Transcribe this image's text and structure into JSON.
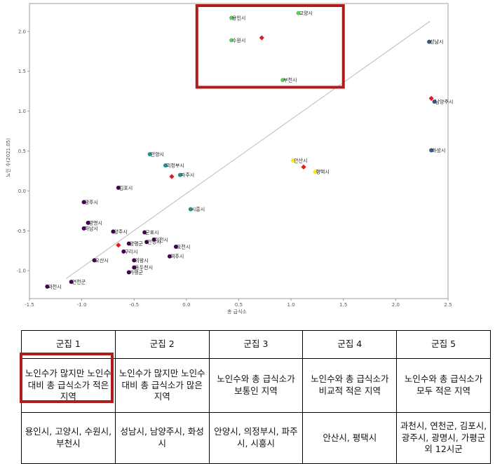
{
  "colors": {
    "cluster1": "#5ec962",
    "cluster2": "#3b528b",
    "cluster3": "#21918c",
    "cluster4": "#fde725",
    "cluster5": "#440154",
    "centroid": "#e31a1c",
    "highlight": "#b01c1c",
    "trendline": "#bbbbbb"
  },
  "chart_data": {
    "type": "scatter",
    "xlabel": "총 급식소",
    "ylabel": "노인 수(2021.05)",
    "xlim": [
      -1.5,
      2.5
    ],
    "ylim": [
      -1.35,
      2.35
    ],
    "xticks": [
      "-1.5",
      "-1.0",
      "-0.5",
      "0.0",
      "0.5",
      "1.0",
      "1.5",
      "2.0",
      "2.5"
    ],
    "yticks": [
      "-1.0",
      "-0.5",
      "0.0",
      "0.5",
      "1.0",
      "1.5",
      "2.0"
    ],
    "trendline": [
      [
        -1.15,
        -1.1
      ],
      [
        2.33,
        2.13
      ]
    ],
    "points": [
      {
        "label": "용인시",
        "x": 0.43,
        "y": 2.17,
        "cluster": 1
      },
      {
        "label": "고양시",
        "x": 1.07,
        "y": 2.23,
        "cluster": 1
      },
      {
        "label": "수원시",
        "x": 0.43,
        "y": 1.89,
        "cluster": 1
      },
      {
        "label": "부천시",
        "x": 0.92,
        "y": 1.39,
        "cluster": 1
      },
      {
        "label": "성남시",
        "x": 2.32,
        "y": 1.87,
        "cluster": 2
      },
      {
        "label": "남양주시",
        "x": 2.37,
        "y": 1.12,
        "cluster": 2
      },
      {
        "label": "화성시",
        "x": 2.34,
        "y": 0.51,
        "cluster": 2
      },
      {
        "label": "안양시",
        "x": -0.35,
        "y": 0.46,
        "cluster": 3
      },
      {
        "label": "의정부시",
        "x": -0.2,
        "y": 0.32,
        "cluster": 3
      },
      {
        "label": "파주시",
        "x": -0.06,
        "y": 0.2,
        "cluster": 3
      },
      {
        "label": "시흥시",
        "x": 0.04,
        "y": -0.23,
        "cluster": 3
      },
      {
        "label": "안산시",
        "x": 1.02,
        "y": 0.38,
        "cluster": 4
      },
      {
        "label": "평택시",
        "x": 1.23,
        "y": 0.24,
        "cluster": 4
      },
      {
        "label": "김포시",
        "x": -0.65,
        "y": 0.04,
        "cluster": 5
      },
      {
        "label": "광주시",
        "x": -0.98,
        "y": -0.14,
        "cluster": 5
      },
      {
        "label": "광명시",
        "x": -0.94,
        "y": -0.4,
        "cluster": 5
      },
      {
        "label": "하남시",
        "x": -0.98,
        "y": -0.47,
        "cluster": 5
      },
      {
        "label": "양주시",
        "x": -0.7,
        "y": -0.51,
        "cluster": 5
      },
      {
        "label": "군포시",
        "x": -0.4,
        "y": -0.52,
        "cluster": 5
      },
      {
        "label": "이천시",
        "x": -0.31,
        "y": -0.61,
        "cluster": 5
      },
      {
        "label": "안성시",
        "x": -0.38,
        "y": -0.64,
        "cluster": 5
      },
      {
        "label": "양평군",
        "x": -0.55,
        "y": -0.66,
        "cluster": 5
      },
      {
        "label": "포천시",
        "x": -0.1,
        "y": -0.7,
        "cluster": 5
      },
      {
        "label": "구리시",
        "x": -0.6,
        "y": -0.76,
        "cluster": 5
      },
      {
        "label": "여주시",
        "x": -0.16,
        "y": -0.82,
        "cluster": 5
      },
      {
        "label": "오산시",
        "x": -0.88,
        "y": -0.87,
        "cluster": 5
      },
      {
        "label": "의왕시",
        "x": -0.5,
        "y": -0.87,
        "cluster": 5
      },
      {
        "label": "동두천시",
        "x": -0.5,
        "y": -0.96,
        "cluster": 5
      },
      {
        "label": "가평군",
        "x": -0.55,
        "y": -1.02,
        "cluster": 5
      },
      {
        "label": "연천군",
        "x": -1.1,
        "y": -1.14,
        "cluster": 5
      },
      {
        "label": "과천시",
        "x": -1.33,
        "y": -1.2,
        "cluster": 5
      }
    ],
    "centroids": [
      {
        "x": 0.72,
        "y": 1.92
      },
      {
        "x": 2.34,
        "y": 1.16
      },
      {
        "x": -0.14,
        "y": 0.18
      },
      {
        "x": 1.12,
        "y": 0.3
      },
      {
        "x": -0.65,
        "y": -0.68
      }
    ],
    "highlight_region": {
      "x": [
        0.1,
        1.5
      ],
      "y": [
        1.3,
        2.45
      ]
    }
  },
  "table": {
    "headers": [
      "군집 1",
      "군집 2",
      "군집 3",
      "군집 4",
      "군집 5"
    ],
    "descriptions": [
      "노인수가 많지만 노인수 대비 총 급식소가 적은 지역",
      "노인수가 많지만 노인수대비 총 급식소가 많은 지역",
      "노인수와 총 급식소가 보통인 지역",
      "노인수와 총 급식소가 비교적 적은 지역",
      "노인수와 총 급식소가 모두 적은 지역"
    ],
    "cities": [
      "용인시, 고양시, 수원시, 부천시",
      "성남시, 남양주시, 화성시",
      "안양시, 의정부시, 파주시, 시흥시",
      "안산시, 평택시",
      "과천시, 연천군, 김포시, 광주시, 광명시, 가평군 외 12시군"
    ]
  }
}
